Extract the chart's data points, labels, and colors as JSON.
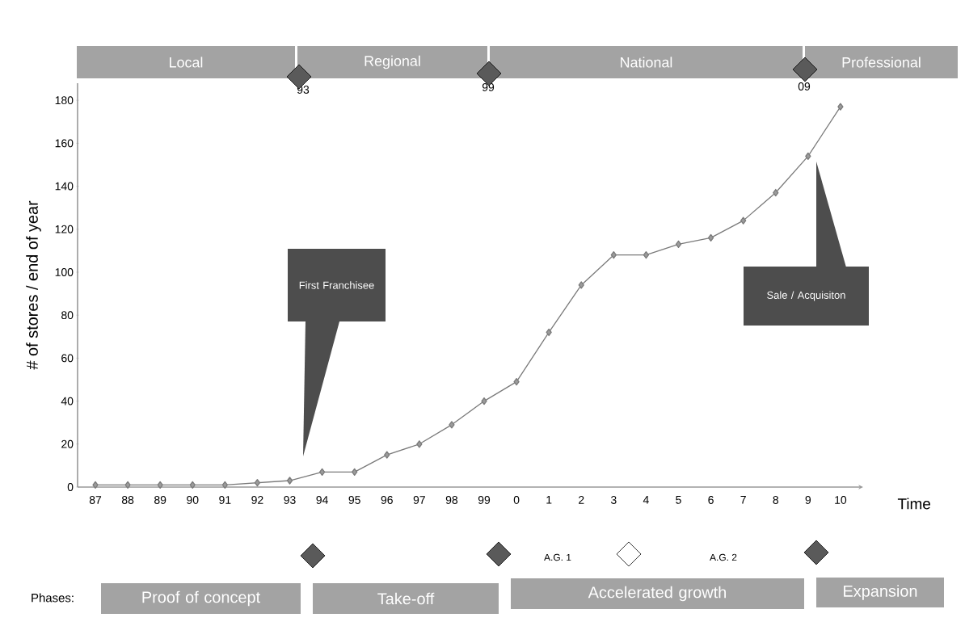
{
  "chart_data": {
    "type": "line",
    "xlabel": "Time",
    "ylabel": "# of stores / end of year",
    "categories": [
      "87",
      "88",
      "89",
      "90",
      "91",
      "92",
      "93",
      "94",
      "95",
      "96",
      "97",
      "98",
      "99",
      "0",
      "1",
      "2",
      "3",
      "4",
      "5",
      "6",
      "7",
      "8",
      "9",
      "10"
    ],
    "values": [
      1,
      1,
      1,
      1,
      1,
      2,
      3,
      7,
      7,
      15,
      20,
      29,
      40,
      49,
      72,
      94,
      108,
      108,
      113,
      116,
      124,
      137,
      154,
      177
    ],
    "color": "#7a7a7a",
    "marker": "diamond",
    "line_style": "solid",
    "ylim": [
      0,
      188
    ],
    "yticks": [
      0,
      20,
      40,
      60,
      80,
      100,
      120,
      140,
      160,
      180
    ],
    "annotations": [
      "Local",
      "Regional",
      "National",
      "Professional",
      "93",
      "99",
      "09",
      "First Franchisee",
      "Sale / Acquisiton",
      "A.G. 1",
      "A.G. 2",
      "Phases:",
      "Proof of concept",
      "Take-off",
      "Accelerated growth",
      "Expansion"
    ]
  }
}
